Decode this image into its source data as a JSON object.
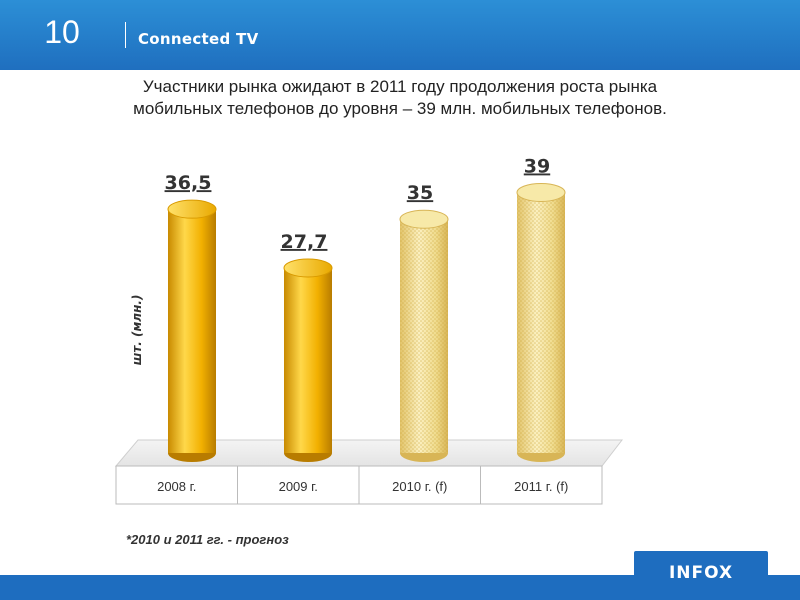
{
  "header": {
    "slide_number": "10",
    "section_title": "Connected TV"
  },
  "headline": "Участники рынка ожидают в 2011 году продолжения роста рынка мобильных телефонов до уровня – 39 млн. мобильных телефонов.",
  "footnote": "*2010 и 2011 гг. - прогноз",
  "logo": {
    "text": "INFOX"
  },
  "colors": {
    "header_blue": "#1f6fbf",
    "bar_actual": "#f5b800",
    "bar_forecast": "#f0e19a"
  },
  "chart_data": {
    "type": "bar",
    "categories": [
      "2008 г.",
      "2009 г.",
      "2010 г. (f)",
      "2011 г. (f)"
    ],
    "values": [
      36.5,
      27.7,
      35,
      39
    ],
    "value_labels": [
      "36,5",
      "27,7",
      "35",
      "39"
    ],
    "forecast": [
      false,
      false,
      true,
      true
    ],
    "ylabel": "шт. (млн.)",
    "ylim": [
      0,
      40
    ],
    "grid": false,
    "legend": "none"
  }
}
